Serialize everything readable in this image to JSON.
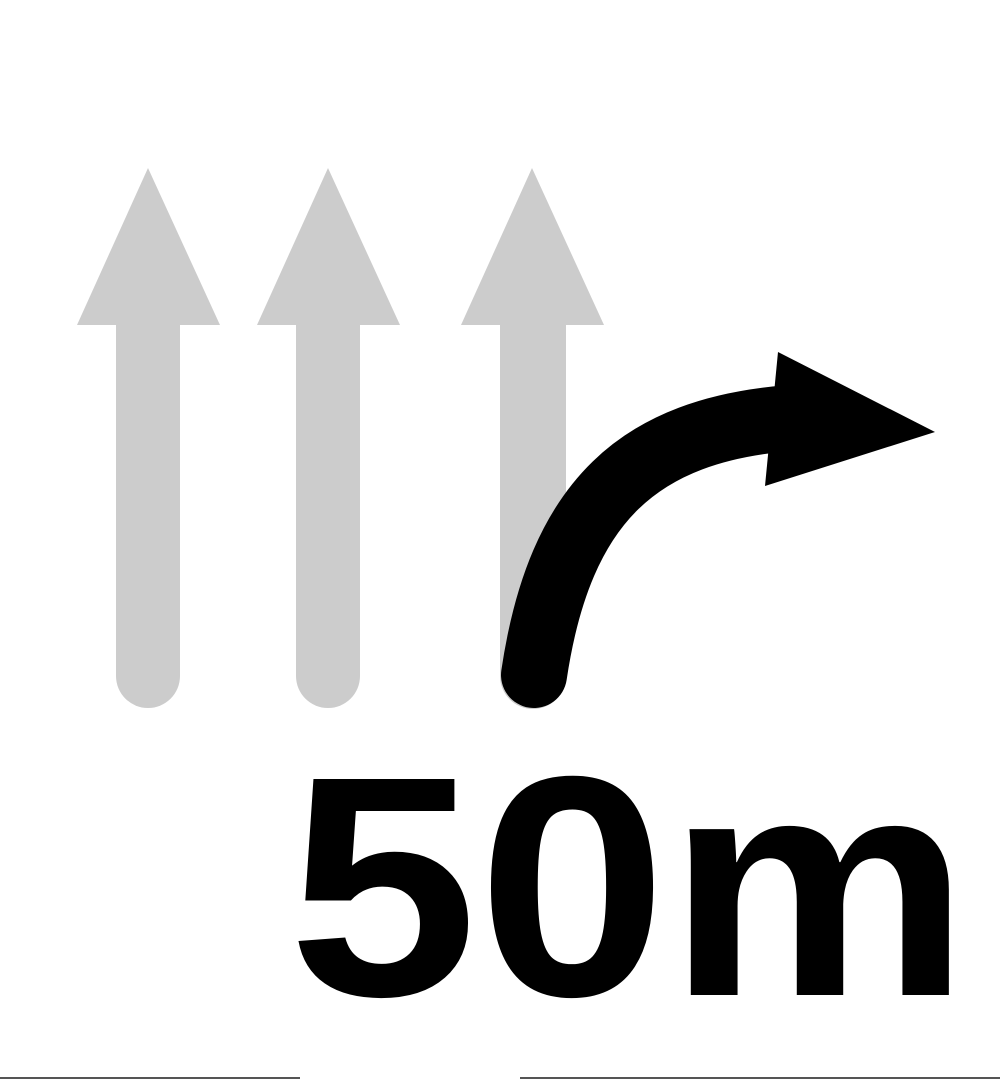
{
  "distance": "50m"
}
